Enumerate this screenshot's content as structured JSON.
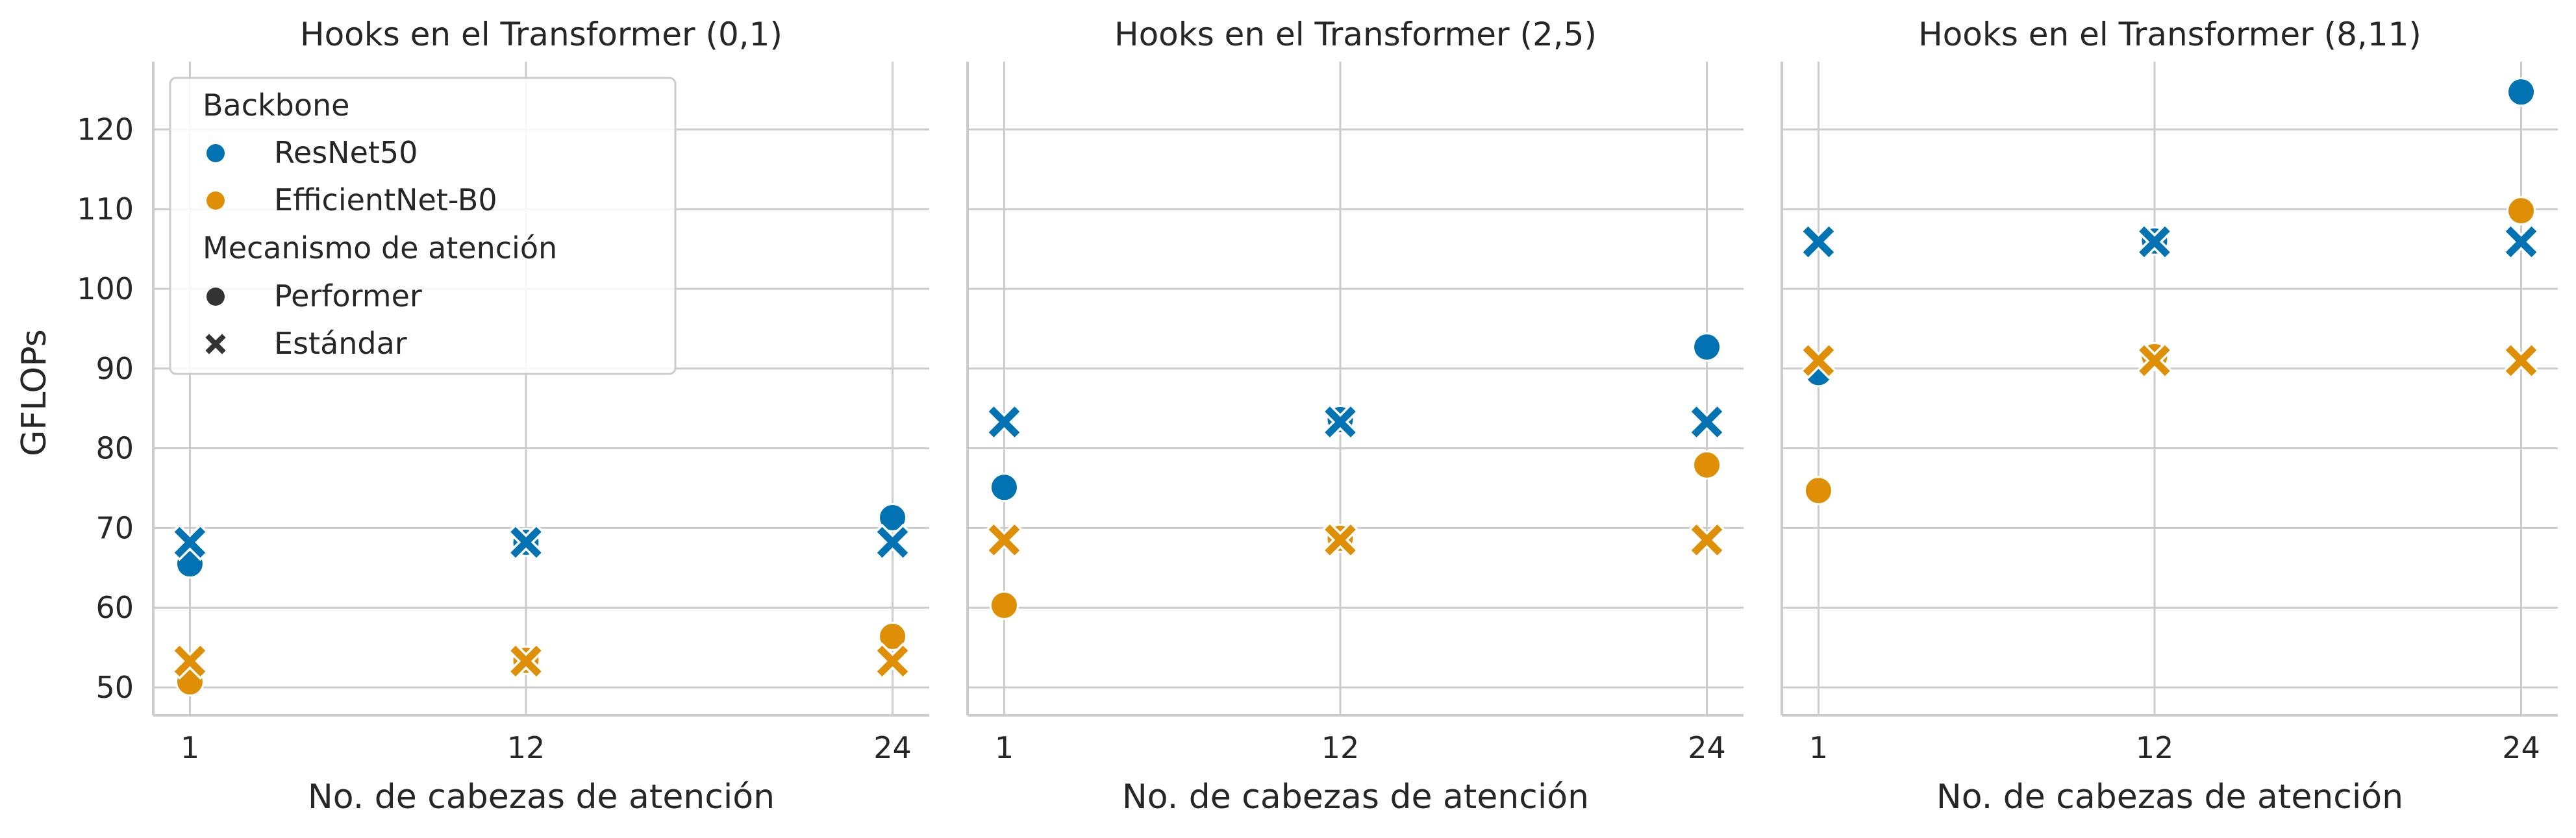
{
  "chart_data": {
    "type": "scatter",
    "ylabel": "GFLOPs",
    "xlabel": "No. de cabezas de atención",
    "x_ticks": [
      1,
      12,
      24
    ],
    "xlim": [
      -0.2,
      25.2
    ],
    "ylim": [
      46.5,
      128.5
    ],
    "y_ticks": [
      50,
      60,
      70,
      80,
      90,
      100,
      110,
      120
    ],
    "grid": true,
    "legend": {
      "placement": "upper-left",
      "hue_title": "Backbone",
      "hue_entries": [
        {
          "label": "ResNet50",
          "color": "#0173b2"
        },
        {
          "label": "EfficientNet-B0",
          "color": "#de8f05"
        }
      ],
      "style_title": "Mecanismo de atención",
      "style_entries": [
        {
          "label": "Performer",
          "marker": "circle"
        },
        {
          "label": "Estándar",
          "marker": "x"
        }
      ]
    },
    "colors": {
      "ResNet50": "#0173b2",
      "EfficientNet-B0": "#de8f05"
    },
    "panels": [
      {
        "title": "Hooks en el Transformer (0,1)",
        "series": [
          {
            "backbone": "ResNet50",
            "mechanism": "Performer",
            "x": [
              1,
              12,
              24
            ],
            "y": [
              65.5,
              68.2,
              71.3
            ]
          },
          {
            "backbone": "ResNet50",
            "mechanism": "Estándar",
            "x": [
              1,
              12,
              24
            ],
            "y": [
              68.2,
              68.2,
              68.2
            ]
          },
          {
            "backbone": "EfficientNet-B0",
            "mechanism": "Performer",
            "x": [
              1,
              12,
              24
            ],
            "y": [
              50.7,
              53.4,
              56.4
            ]
          },
          {
            "backbone": "EfficientNet-B0",
            "mechanism": "Estándar",
            "x": [
              1,
              12,
              24
            ],
            "y": [
              53.3,
              53.3,
              53.3
            ]
          }
        ]
      },
      {
        "title": "Hooks en el Transformer (2,5)",
        "series": [
          {
            "backbone": "ResNet50",
            "mechanism": "Performer",
            "x": [
              1,
              12,
              24
            ],
            "y": [
              75.1,
              83.6,
              92.7
            ]
          },
          {
            "backbone": "ResNet50",
            "mechanism": "Estándar",
            "x": [
              1,
              12,
              24
            ],
            "y": [
              83.3,
              83.3,
              83.3
            ]
          },
          {
            "backbone": "EfficientNet-B0",
            "mechanism": "Performer",
            "x": [
              1,
              12,
              24
            ],
            "y": [
              60.3,
              68.7,
              77.9
            ]
          },
          {
            "backbone": "EfficientNet-B0",
            "mechanism": "Estándar",
            "x": [
              1,
              12,
              24
            ],
            "y": [
              68.5,
              68.5,
              68.5
            ]
          }
        ]
      },
      {
        "title": "Hooks en el Transformer (8,11)",
        "series": [
          {
            "backbone": "ResNet50",
            "mechanism": "Performer",
            "x": [
              1,
              12,
              24
            ],
            "y": [
              89.5,
              106.0,
              124.7
            ]
          },
          {
            "backbone": "ResNet50",
            "mechanism": "Estándar",
            "x": [
              1,
              12,
              24
            ],
            "y": [
              105.9,
              105.9,
              105.9
            ]
          },
          {
            "backbone": "EfficientNet-B0",
            "mechanism": "Performer",
            "x": [
              1,
              12,
              24
            ],
            "y": [
              74.7,
              91.5,
              109.8
            ]
          },
          {
            "backbone": "EfficientNet-B0",
            "mechanism": "Estándar",
            "x": [
              1,
              12,
              24
            ],
            "y": [
              91.0,
              91.0,
              91.0
            ]
          }
        ]
      }
    ]
  }
}
